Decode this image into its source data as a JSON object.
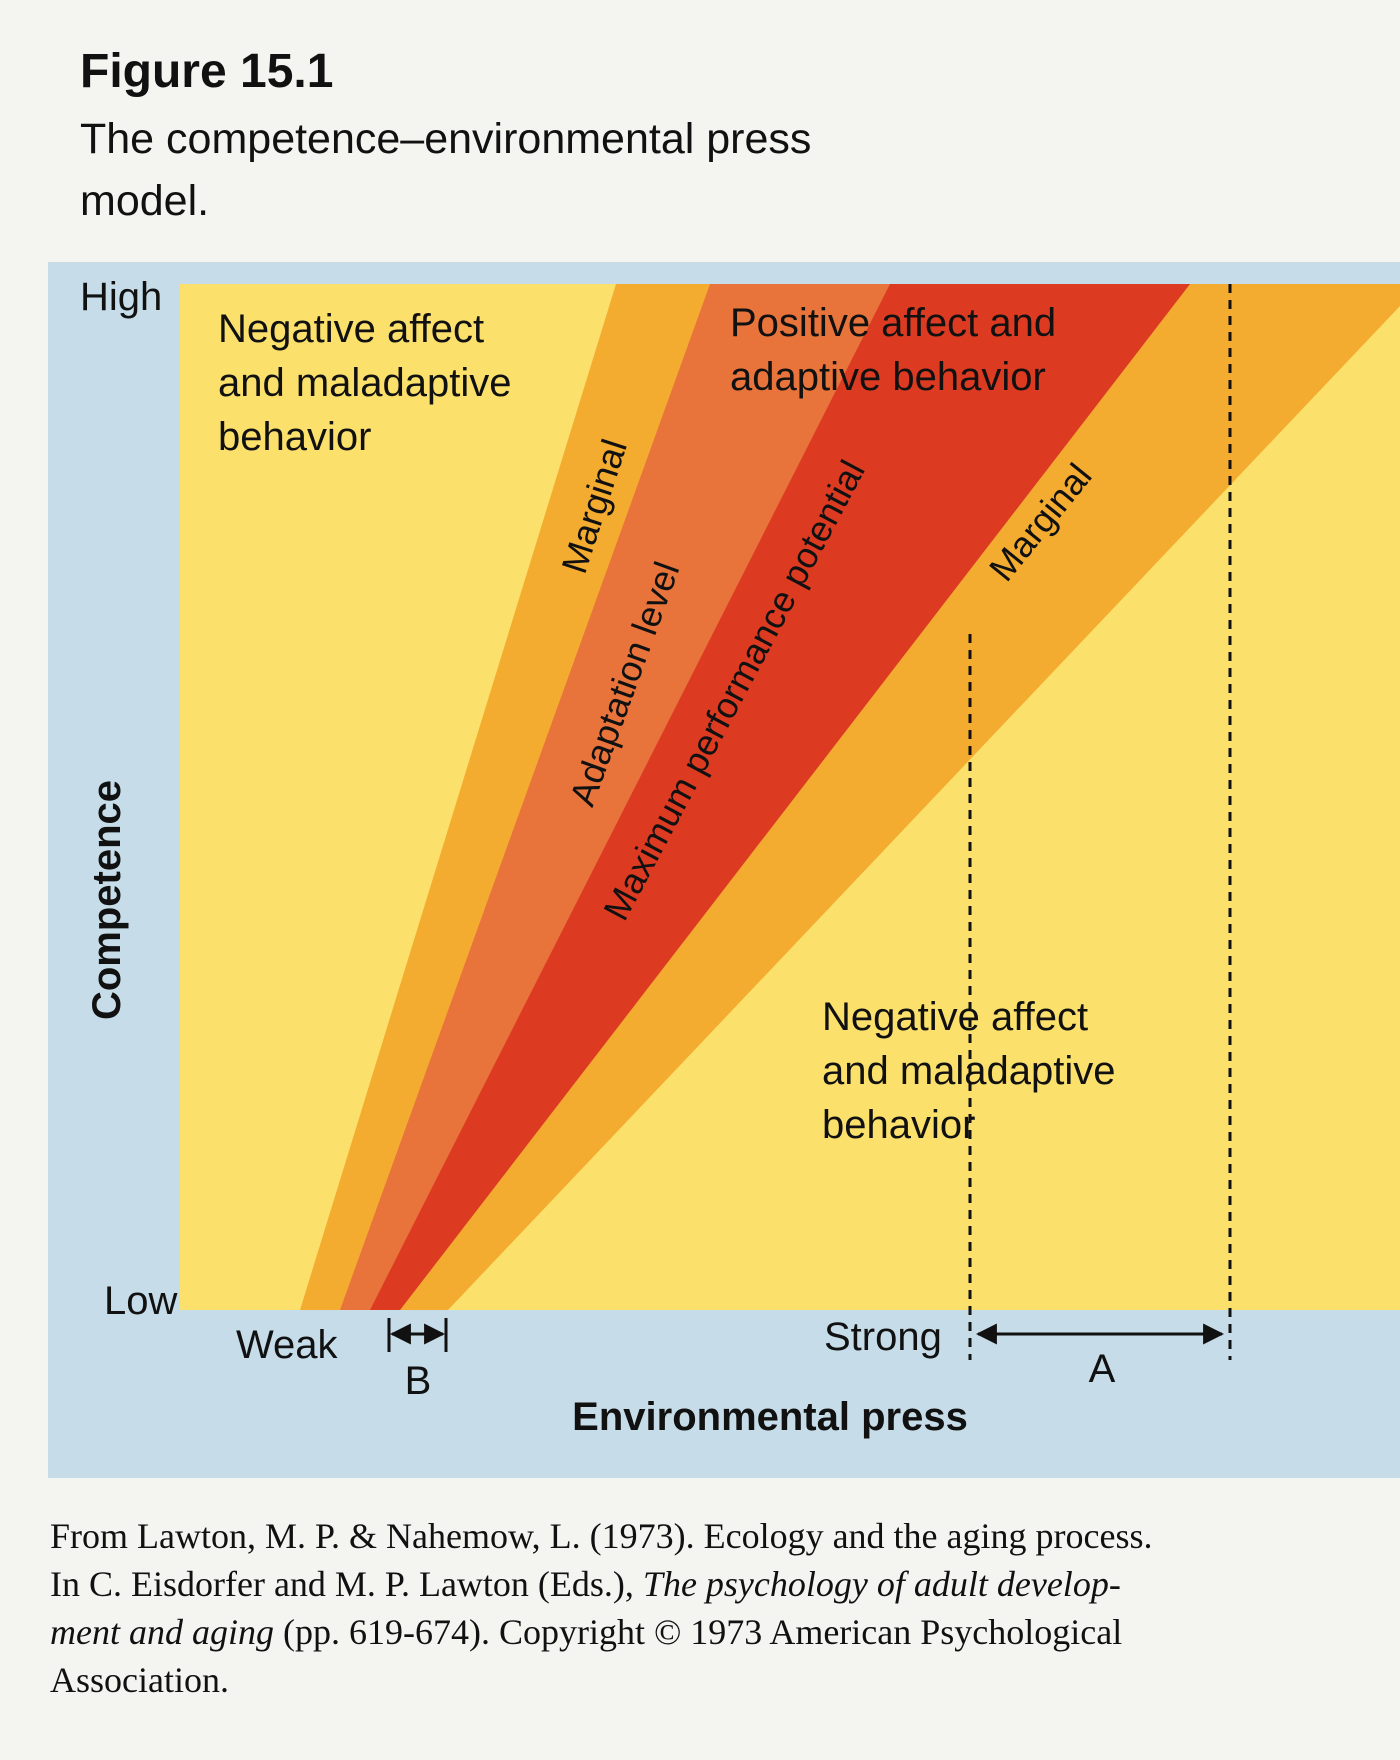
{
  "figure": {
    "label": "Figure 15.1",
    "caption": "The competence–environmental press model."
  },
  "diagram": {
    "colors": {
      "panel_background": "#c6dde9",
      "plot_background": "#fbe06c",
      "marginal_band": "#f4ac30",
      "adaptation_band": "#e8743c",
      "maximum_band": "#dc3b22"
    },
    "y_axis": {
      "title": "Competence",
      "high_label": "High",
      "low_label": "Low"
    },
    "x_axis": {
      "title": "Environmental press",
      "weak_label": "Weak",
      "strong_label": "Strong"
    },
    "regions": {
      "negative_upper": [
        "Negative affect",
        "and maladaptive",
        "behavior"
      ],
      "positive": [
        "Positive affect and",
        "adaptive behavior"
      ],
      "negative_lower": [
        "Negative affect",
        "and maladaptive",
        "behavior"
      ]
    },
    "bands": {
      "marginal_upper": "Marginal",
      "adaptation_level": "Adaptation level",
      "maximum_performance": "Maximum performance potential",
      "marginal_lower": "Marginal"
    },
    "ranges": {
      "a_label": "A",
      "b_label": "B"
    }
  },
  "credit": {
    "line1": "From Lawton, M. P. & Nahemow, L. (1973). Ecology and the aging process.",
    "line2_prefix": "In C. Eisdorfer and M. P. Lawton (Eds.),",
    "line2_italic": "The psychology of adult develop-",
    "line3_italic": "ment and aging",
    "line3_suffix": "(pp. 619-674). Copyright © 1973 American Psychological",
    "line4": "Association."
  }
}
